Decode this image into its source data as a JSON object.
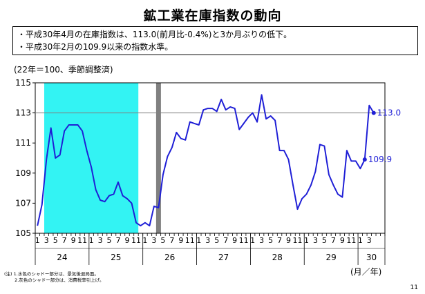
{
  "title": "鉱工業在庫指数の動向",
  "bullets": [
    "・平成30年4月の在庫指数は、113.0(前月比-0.4%)と3か月ぶりの低下。",
    "・平成30年2月の109.9以来の指数水準。"
  ],
  "unit_label": "(22年＝100、季節調整済)",
  "axis_unit_label": "(月／年)",
  "notes": [
    "(注) 1.水色のシャドー部分は、景気後退局面。",
    "　　 2.灰色のシャドー部分は、消費税率引上げ。"
  ],
  "page_number": "11",
  "colors": {
    "line": "#1f1fd6",
    "recession_shade": "#33f3f3",
    "tax_shade": "#808080",
    "reference_line": "#808080"
  },
  "chart_data": {
    "type": "line",
    "ylim": [
      105,
      115
    ],
    "y_ticks": [
      "105",
      "107",
      "109",
      "111",
      "113",
      "115"
    ],
    "reference_line": 113.0,
    "month_tick_labels": [
      "1",
      "3",
      "5",
      "7",
      "9",
      "11"
    ],
    "last_year_month_labels": [
      "1",
      "3"
    ],
    "years": [
      "24",
      "25",
      "26",
      "27",
      "28",
      "29",
      "30"
    ],
    "recession_shade": {
      "from": "24-3",
      "to": "25-11"
    },
    "tax_shade": {
      "month": "26-4"
    },
    "series": [
      {
        "start": "24-1",
        "values": [
          105.5,
          106.9,
          109.9,
          112.0,
          110.0,
          110.2,
          111.8,
          112.2,
          112.2,
          112.2,
          111.8,
          110.5,
          109.4,
          107.9,
          107.2,
          107.1,
          107.5,
          107.6,
          108.4,
          107.5,
          107.3,
          107.0,
          105.7,
          105.5,
          105.7,
          105.5,
          106.8,
          106.7,
          108.9,
          110.1,
          110.7,
          111.7,
          111.3,
          111.2,
          112.4,
          112.3,
          112.2,
          113.2,
          113.3,
          113.3,
          113.1,
          113.9,
          113.2,
          113.4,
          113.3,
          111.9,
          112.3,
          112.7,
          113.0,
          112.4,
          114.2,
          112.6,
          112.8,
          112.5,
          110.5,
          110.5,
          109.9,
          108.2,
          106.6,
          107.3,
          107.6,
          108.2,
          109.1,
          110.9,
          110.8,
          108.9,
          108.2,
          107.6,
          107.4,
          110.5,
          109.8,
          109.8,
          109.3,
          109.9,
          113.5,
          113.0
        ]
      }
    ],
    "annotations": [
      {
        "label": "113.0",
        "at": "30-4",
        "value": 113.0
      },
      {
        "label": "109.9",
        "at": "30-2",
        "value": 109.9
      }
    ]
  }
}
